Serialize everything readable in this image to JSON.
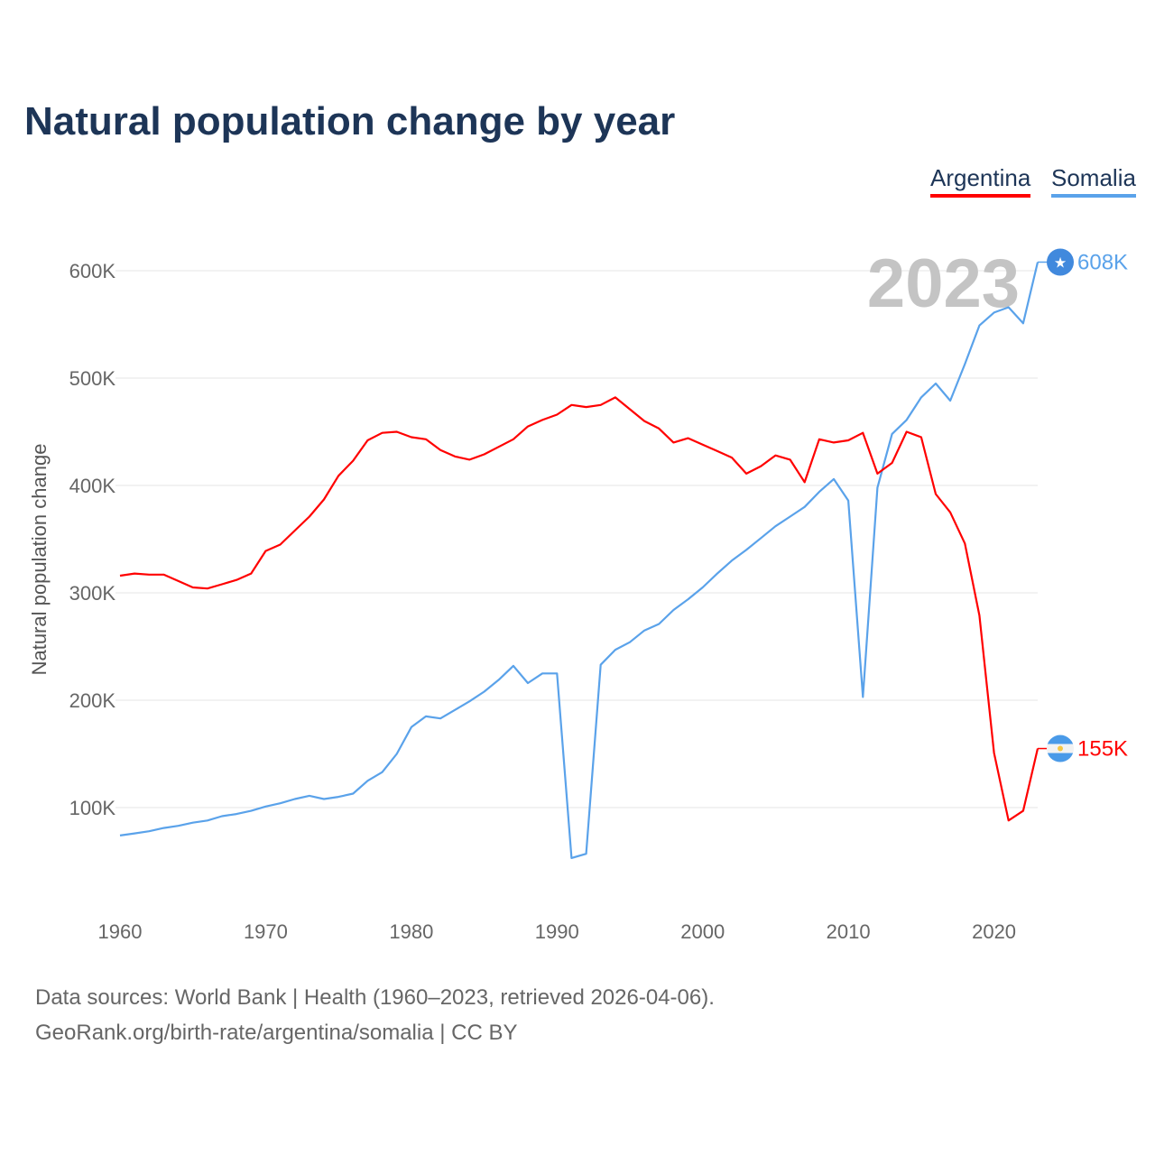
{
  "title": "Natural population change by year",
  "legend": [
    {
      "name": "Argentina",
      "color": "#ff0000"
    },
    {
      "name": "Somalia",
      "color": "#5aa2ea"
    }
  ],
  "year_label": "2023",
  "end_labels": {
    "somalia": "608K",
    "argentina": "155K"
  },
  "footer": {
    "line1": "Data sources: World Bank | Health (1960–2023, retrieved 2026-04-06).",
    "line2": "GeoRank.org/birth-rate/argentina/somalia | CC BY"
  },
  "chart_data": {
    "type": "line",
    "title": "Natural population change by year",
    "xlabel": "",
    "ylabel": "Natural population change",
    "xlim": [
      1960,
      2023
    ],
    "ylim": [
      0,
      600
    ],
    "unit": "thousands",
    "grid": true,
    "legend_position": "top-right",
    "x_ticks": [
      1960,
      1970,
      1980,
      1990,
      2000,
      2010,
      2020
    ],
    "y_ticks": [
      100,
      200,
      300,
      400,
      500,
      600
    ],
    "y_tick_labels": [
      "100K",
      "200K",
      "300K",
      "400K",
      "500K",
      "600K"
    ],
    "x": [
      1960,
      1961,
      1962,
      1963,
      1964,
      1965,
      1966,
      1967,
      1968,
      1969,
      1970,
      1971,
      1972,
      1973,
      1974,
      1975,
      1976,
      1977,
      1978,
      1979,
      1980,
      1981,
      1982,
      1983,
      1984,
      1985,
      1986,
      1987,
      1988,
      1989,
      1990,
      1991,
      1992,
      1993,
      1994,
      1995,
      1996,
      1997,
      1998,
      1999,
      2000,
      2001,
      2002,
      2003,
      2004,
      2005,
      2006,
      2007,
      2008,
      2009,
      2010,
      2011,
      2012,
      2013,
      2014,
      2015,
      2016,
      2017,
      2018,
      2019,
      2020,
      2021,
      2022,
      2023
    ],
    "series": [
      {
        "name": "Argentina",
        "color": "#ff0000",
        "values": [
          316,
          318,
          317,
          317,
          311,
          305,
          304,
          308,
          312,
          318,
          339,
          345,
          358,
          371,
          387,
          409,
          423,
          442,
          449,
          450,
          445,
          443,
          433,
          427,
          424,
          429,
          436,
          443,
          455,
          461,
          466,
          475,
          473,
          475,
          482,
          471,
          460,
          453,
          440,
          444,
          438,
          432,
          426,
          411,
          418,
          428,
          424,
          403,
          443,
          440,
          442,
          449,
          411,
          421,
          450,
          445,
          392,
          375,
          346,
          279,
          151,
          88,
          97,
          155
        ]
      },
      {
        "name": "Somalia",
        "color": "#5aa2ea",
        "values": [
          74,
          76,
          78,
          81,
          83,
          86,
          88,
          92,
          94,
          97,
          101,
          104,
          108,
          111,
          108,
          110,
          113,
          125,
          133,
          150,
          175,
          185,
          183,
          191,
          199,
          208,
          219,
          232,
          216,
          225,
          225,
          53,
          57,
          233,
          247,
          254,
          265,
          271,
          284,
          294,
          305,
          318,
          330,
          340,
          351,
          362,
          371,
          380,
          394,
          406,
          386,
          203,
          398,
          448,
          461,
          482,
          495,
          479,
          513,
          549,
          561,
          566,
          551,
          608
        ]
      }
    ]
  }
}
